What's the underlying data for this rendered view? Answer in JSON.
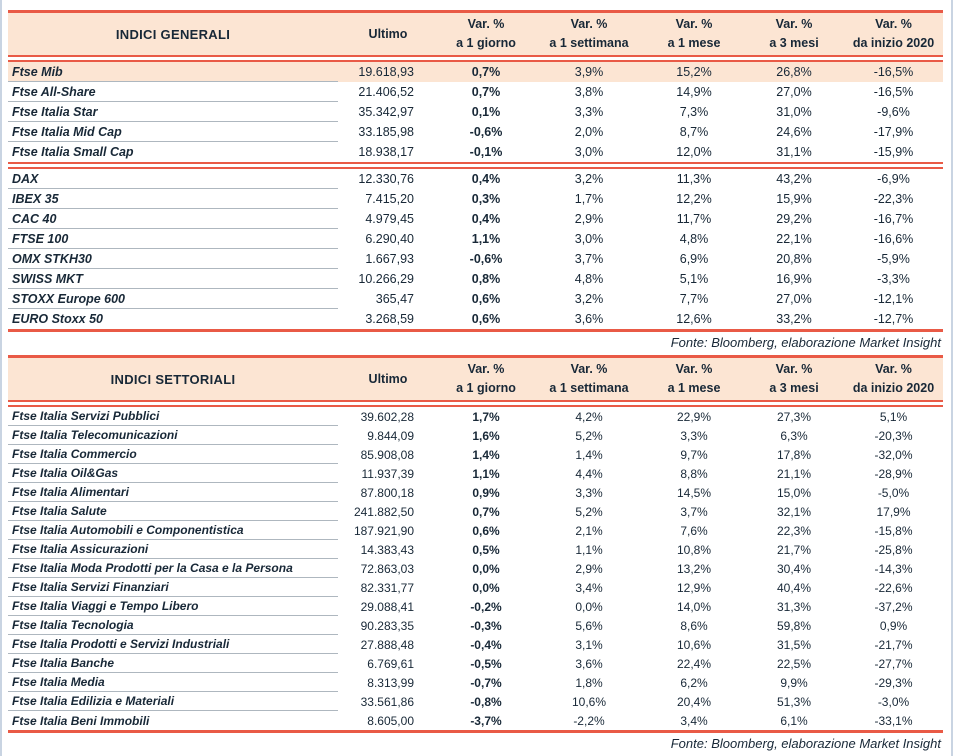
{
  "colors": {
    "accent": "#e95a46",
    "header_bg": "#fce5d3",
    "text": "#182837",
    "row_underline": "#aeb7bf",
    "page_frame": "#c9d4e2"
  },
  "source_note": "Fonte: Bloomberg, elaborazione Market Insight",
  "var_headers": [
    {
      "l1": "Var. %",
      "l2": "a 1 giorno"
    },
    {
      "l1": "Var. %",
      "l2": "a 1 settimana"
    },
    {
      "l1": "Var. %",
      "l2": "a 1 mese"
    },
    {
      "l1": "Var. %",
      "l2": "a 3 mesi"
    },
    {
      "l1": "Var. %",
      "l2": "da inizio 2020"
    }
  ],
  "ultimo_label": "Ultimo",
  "tables": [
    {
      "title": "INDICI GENERALI",
      "groups": [
        {
          "rows": [
            {
              "name": "Ftse Mib",
              "ultimo": "19.618,93",
              "d1": "0,7%",
              "w1": "3,9%",
              "m1": "15,2%",
              "m3": "26,8%",
              "y2020": "-16,5%",
              "highlight": true
            },
            {
              "name": "Ftse All-Share",
              "ultimo": "21.406,52",
              "d1": "0,7%",
              "w1": "3,8%",
              "m1": "14,9%",
              "m3": "27,0%",
              "y2020": "-16,5%"
            },
            {
              "name": "Ftse Italia Star",
              "ultimo": "35.342,97",
              "d1": "0,1%",
              "w1": "3,3%",
              "m1": "7,3%",
              "m3": "31,0%",
              "y2020": "-9,6%"
            },
            {
              "name": "Ftse Italia Mid Cap",
              "ultimo": "33.185,98",
              "d1": "-0,6%",
              "w1": "2,0%",
              "m1": "8,7%",
              "m3": "24,6%",
              "y2020": "-17,9%"
            },
            {
              "name": "Ftse Italia Small Cap",
              "ultimo": "18.938,17",
              "d1": "-0,1%",
              "w1": "3,0%",
              "m1": "12,0%",
              "m3": "31,1%",
              "y2020": "-15,9%"
            }
          ]
        },
        {
          "rows": [
            {
              "name": "DAX",
              "ultimo": "12.330,76",
              "d1": "0,4%",
              "w1": "3,2%",
              "m1": "11,3%",
              "m3": "43,2%",
              "y2020": "-6,9%"
            },
            {
              "name": "IBEX 35",
              "ultimo": "7.415,20",
              "d1": "0,3%",
              "w1": "1,7%",
              "m1": "12,2%",
              "m3": "15,9%",
              "y2020": "-22,3%"
            },
            {
              "name": "CAC 40",
              "ultimo": "4.979,45",
              "d1": "0,4%",
              "w1": "2,9%",
              "m1": "11,7%",
              "m3": "29,2%",
              "y2020": "-16,7%"
            },
            {
              "name": "FTSE 100",
              "ultimo": "6.290,40",
              "d1": "1,1%",
              "w1": "3,0%",
              "m1": "4,8%",
              "m3": "22,1%",
              "y2020": "-16,6%"
            },
            {
              "name": "OMX STKH30",
              "ultimo": "1.667,93",
              "d1": "-0,6%",
              "w1": "3,7%",
              "m1": "6,9%",
              "m3": "20,8%",
              "y2020": "-5,9%"
            },
            {
              "name": "SWISS MKT",
              "ultimo": "10.266,29",
              "d1": "0,8%",
              "w1": "4,8%",
              "m1": "5,1%",
              "m3": "16,9%",
              "y2020": "-3,3%"
            },
            {
              "name": "STOXX Europe 600",
              "ultimo": "365,47",
              "d1": "0,6%",
              "w1": "3,2%",
              "m1": "7,7%",
              "m3": "27,0%",
              "y2020": "-12,1%"
            },
            {
              "name": "EURO Stoxx 50",
              "ultimo": "3.268,59",
              "d1": "0,6%",
              "w1": "3,6%",
              "m1": "12,6%",
              "m3": "33,2%",
              "y2020": "-12,7%"
            }
          ]
        }
      ]
    },
    {
      "title": "INDICI SETTORIALI",
      "groups": [
        {
          "rows": [
            {
              "name": "Ftse Italia Servizi Pubblici",
              "ultimo": "39.602,28",
              "d1": "1,7%",
              "w1": "4,2%",
              "m1": "22,9%",
              "m3": "27,3%",
              "y2020": "5,1%"
            },
            {
              "name": "Ftse Italia Telecomunicazioni",
              "ultimo": "9.844,09",
              "d1": "1,6%",
              "w1": "5,2%",
              "m1": "3,3%",
              "m3": "6,3%",
              "y2020": "-20,3%"
            },
            {
              "name": "Ftse Italia Commercio",
              "ultimo": "85.908,08",
              "d1": "1,4%",
              "w1": "1,4%",
              "m1": "9,7%",
              "m3": "17,8%",
              "y2020": "-32,0%"
            },
            {
              "name": "Ftse Italia Oil&Gas",
              "ultimo": "11.937,39",
              "d1": "1,1%",
              "w1": "4,4%",
              "m1": "8,8%",
              "m3": "21,1%",
              "y2020": "-28,9%"
            },
            {
              "name": "Ftse Italia Alimentari",
              "ultimo": "87.800,18",
              "d1": "0,9%",
              "w1": "3,3%",
              "m1": "14,5%",
              "m3": "15,0%",
              "y2020": "-5,0%"
            },
            {
              "name": "Ftse Italia Salute",
              "ultimo": "241.882,50",
              "d1": "0,7%",
              "w1": "5,2%",
              "m1": "3,7%",
              "m3": "32,1%",
              "y2020": "17,9%"
            },
            {
              "name": "Ftse Italia Automobili e Componentistica",
              "ultimo": "187.921,90",
              "d1": "0,6%",
              "w1": "2,1%",
              "m1": "7,6%",
              "m3": "22,3%",
              "y2020": "-15,8%"
            },
            {
              "name": "Ftse Italia Assicurazioni",
              "ultimo": "14.383,43",
              "d1": "0,5%",
              "w1": "1,1%",
              "m1": "10,8%",
              "m3": "21,7%",
              "y2020": "-25,8%"
            },
            {
              "name": "Ftse Italia Moda Prodotti per la Casa e la Persona",
              "ultimo": "72.863,03",
              "d1": "0,0%",
              "w1": "2,9%",
              "m1": "13,2%",
              "m3": "30,4%",
              "y2020": "-14,3%"
            },
            {
              "name": "Ftse Italia Servizi Finanziari",
              "ultimo": "82.331,77",
              "d1": "0,0%",
              "w1": "3,4%",
              "m1": "12,9%",
              "m3": "40,4%",
              "y2020": "-22,6%"
            },
            {
              "name": "Ftse Italia Viaggi e Tempo Libero",
              "ultimo": "29.088,41",
              "d1": "-0,2%",
              "w1": "0,0%",
              "m1": "14,0%",
              "m3": "31,3%",
              "y2020": "-37,2%"
            },
            {
              "name": "Ftse Italia Tecnologia",
              "ultimo": "90.283,35",
              "d1": "-0,3%",
              "w1": "5,6%",
              "m1": "8,6%",
              "m3": "59,8%",
              "y2020": "0,9%"
            },
            {
              "name": "Ftse Italia Prodotti e Servizi Industriali",
              "ultimo": "27.888,48",
              "d1": "-0,4%",
              "w1": "3,1%",
              "m1": "10,6%",
              "m3": "31,5%",
              "y2020": "-21,7%"
            },
            {
              "name": "Ftse Italia Banche",
              "ultimo": "6.769,61",
              "d1": "-0,5%",
              "w1": "3,6%",
              "m1": "22,4%",
              "m3": "22,5%",
              "y2020": "-27,7%"
            },
            {
              "name": "Ftse Italia Media",
              "ultimo": "8.313,99",
              "d1": "-0,7%",
              "w1": "1,8%",
              "m1": "6,2%",
              "m3": "9,9%",
              "y2020": "-29,3%"
            },
            {
              "name": "Ftse Italia Edilizia e Materiali",
              "ultimo": "33.561,86",
              "d1": "-0,8%",
              "w1": "10,6%",
              "m1": "20,4%",
              "m3": "51,3%",
              "y2020": "-3,0%"
            },
            {
              "name": "Ftse Italia Beni Immobili",
              "ultimo": "8.605,00",
              "d1": "-3,7%",
              "w1": "-2,2%",
              "m1": "3,4%",
              "m3": "6,1%",
              "y2020": "-33,1%"
            }
          ]
        }
      ]
    }
  ]
}
